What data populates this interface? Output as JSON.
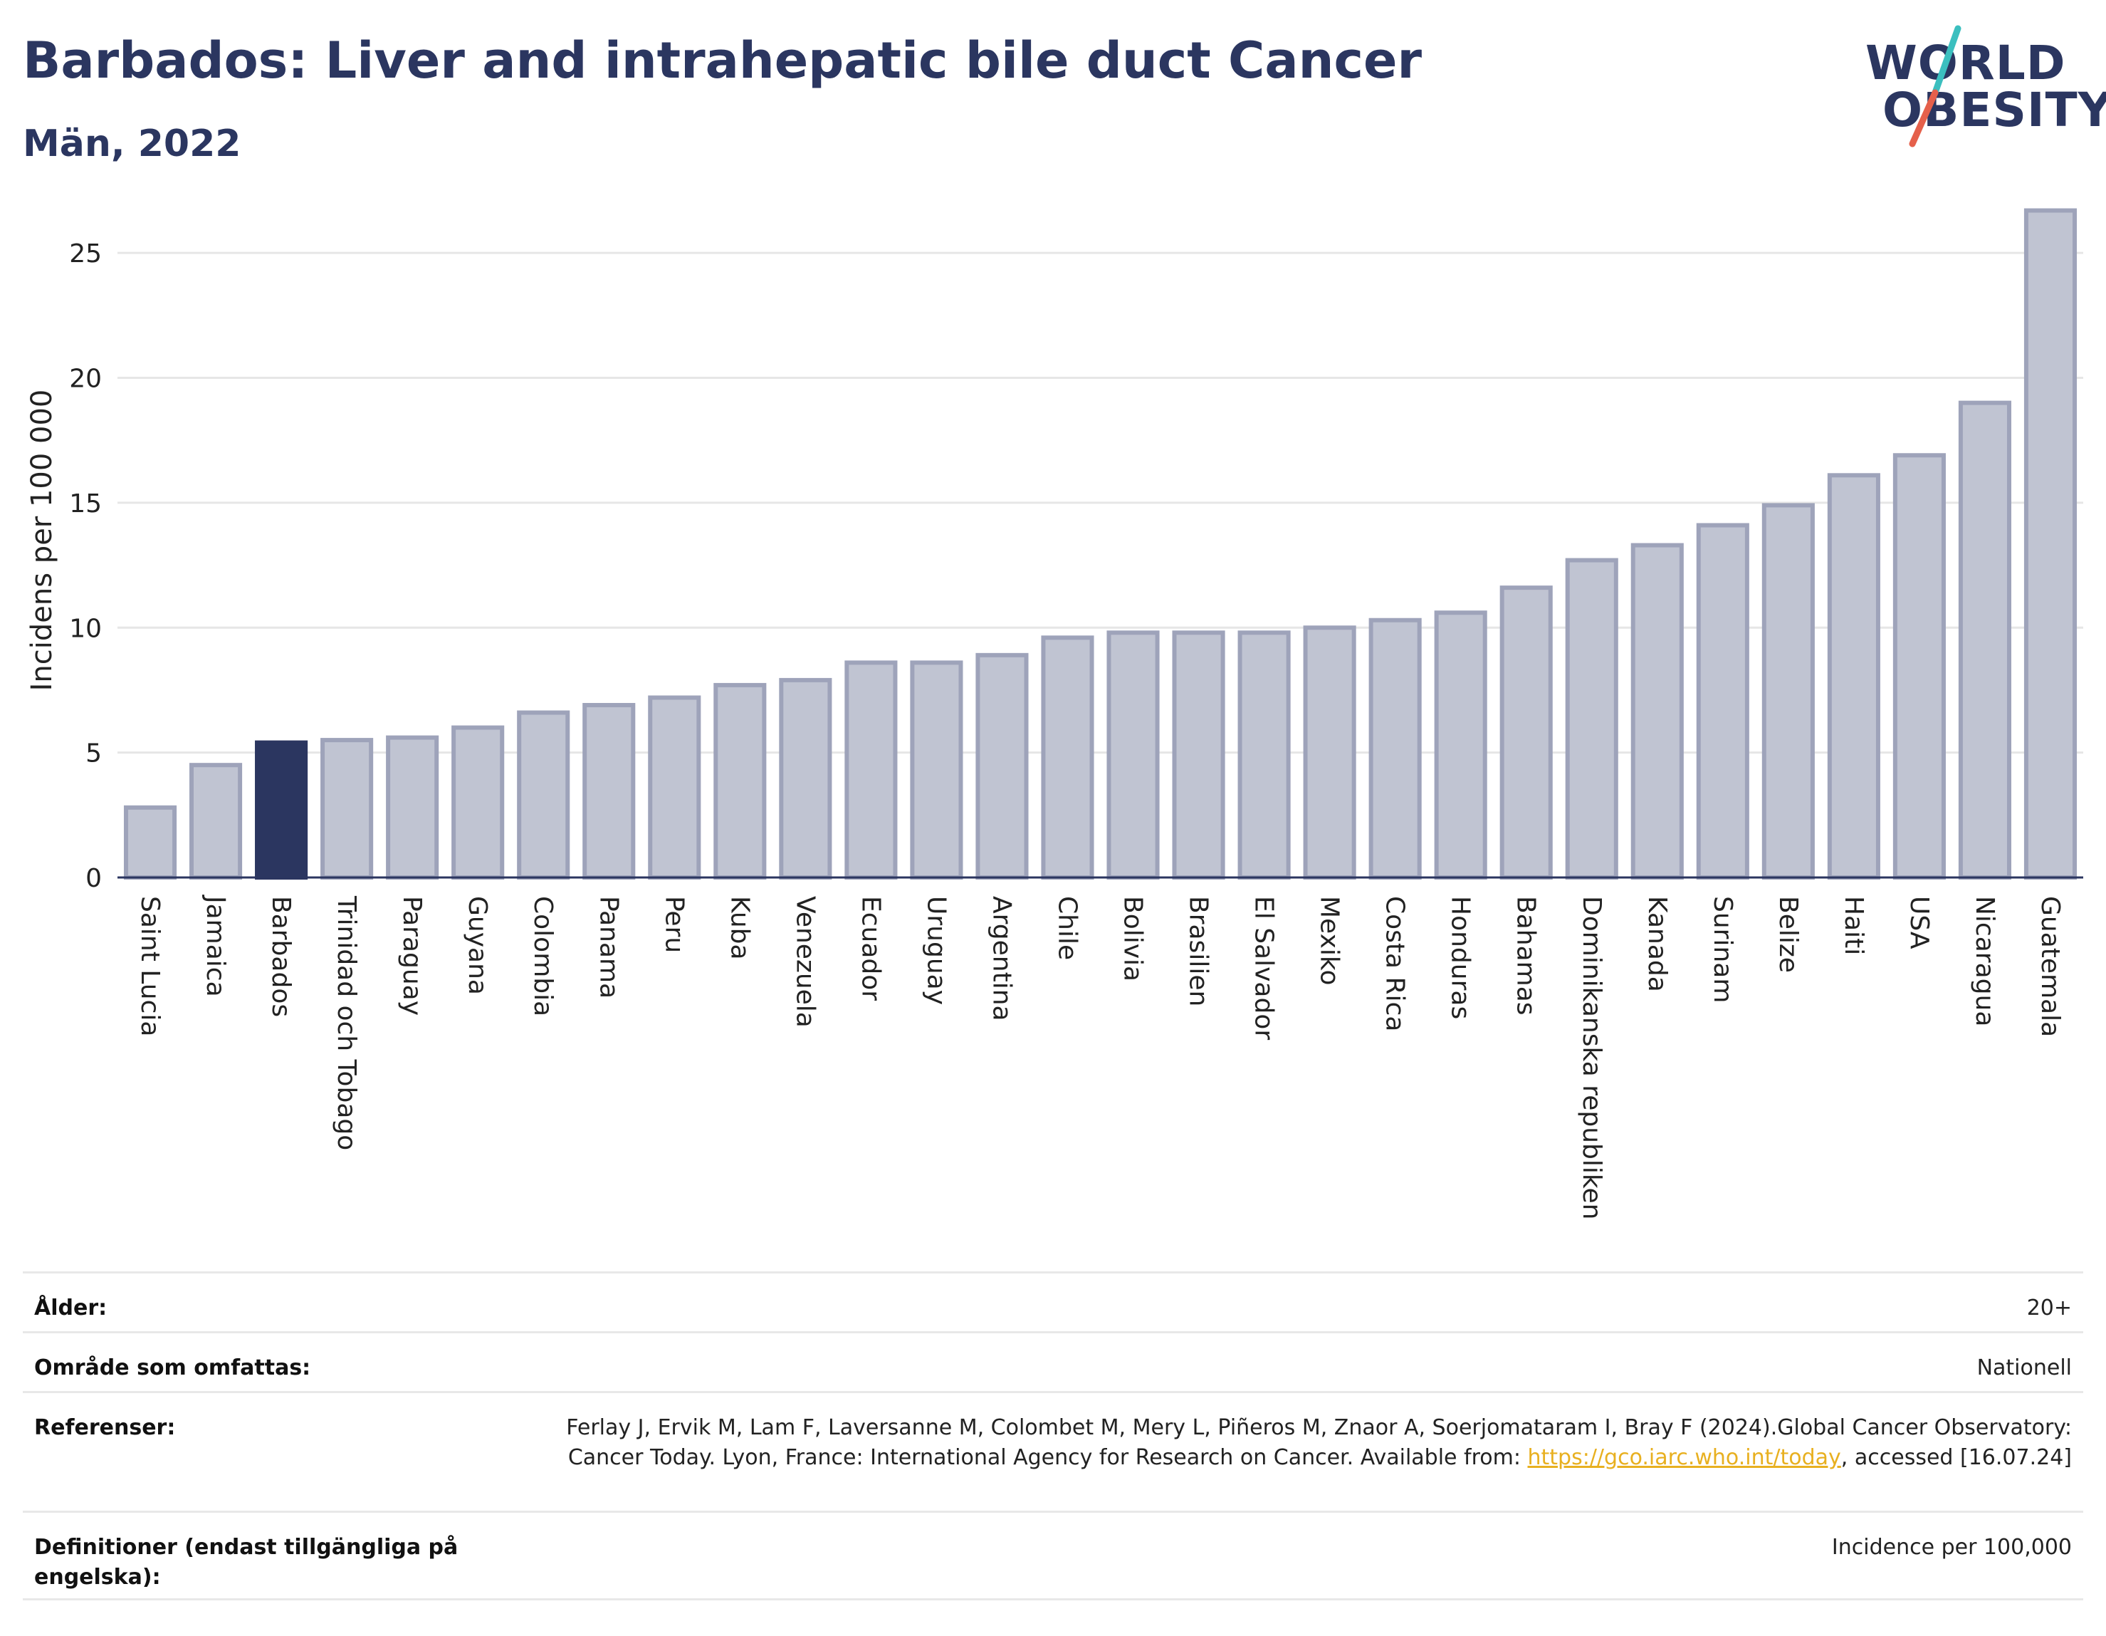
{
  "header": {
    "title": "Barbados: Liver and intrahepatic bile duct Cancer",
    "subtitle": "Män, 2022"
  },
  "logo": {
    "line1": "WORLD",
    "line2": "OBESITY",
    "colors": {
      "text": "#2b3660",
      "slash_top": "#3bbfbf",
      "slash_bottom": "#e5604b"
    }
  },
  "chart_data": {
    "type": "bar",
    "ylabel": "Incidens per 100 000",
    "xlabel": "",
    "ylim": [
      0,
      27
    ],
    "yticks": [
      0,
      5,
      10,
      15,
      20,
      25
    ],
    "grid": true,
    "highlight": "Barbados",
    "colors": {
      "bar": "#c0c4d2",
      "bar_edge": "#9ea3ba",
      "highlight": "#2b3660",
      "grid": "#e6e6e6"
    },
    "categories": [
      "Saint Lucia",
      "Jamaica",
      "Barbados",
      "Trinidad och Tobago",
      "Paraguay",
      "Guyana",
      "Colombia",
      "Panama",
      "Peru",
      "Kuba",
      "Venezuela",
      "Ecuador",
      "Uruguay",
      "Argentina",
      "Chile",
      "Bolivia",
      "Brasilien",
      "El Salvador",
      "Mexiko",
      "Costa Rica",
      "Honduras",
      "Bahamas",
      "Dominikanska republiken",
      "Kanada",
      "Surinam",
      "Belize",
      "Haiti",
      "USA",
      "Nicaragua",
      "Guatemala"
    ],
    "values": [
      2.8,
      4.5,
      5.4,
      5.5,
      5.6,
      6.0,
      6.6,
      6.9,
      7.2,
      7.7,
      7.9,
      8.6,
      8.6,
      8.9,
      9.6,
      9.8,
      9.8,
      9.8,
      10.0,
      10.3,
      10.6,
      11.6,
      12.7,
      13.3,
      14.1,
      14.9,
      16.1,
      16.9,
      19.0,
      26.7
    ]
  },
  "meta": {
    "age_label": "Ålder:",
    "age_value": "20+",
    "area_label": "Område som omfattas:",
    "area_value": "Nationell",
    "refs_label": "Referenser:",
    "refs_text1": "Ferlay J, Ervik M, Lam F, Laversanne M, Colombet M, Mery L, Piñeros M, Znaor A, Soerjomataram I, Bray F (2024).Global Cancer Observatory: Cancer Today. Lyon, France: International Agency for Research on Cancer. Available from: ",
    "refs_link": "https://gco.iarc.who.int/today",
    "refs_text2": ", accessed [16.07.24]",
    "defs_label": "Definitioner (endast tillgängliga på engelska):",
    "defs_value": "Incidence per 100,000"
  }
}
